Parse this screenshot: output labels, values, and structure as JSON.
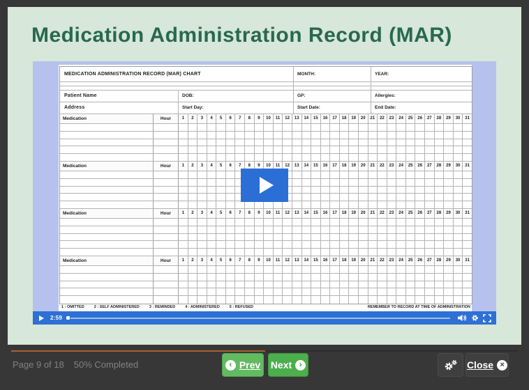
{
  "page": {
    "title": "Medication Administration Record (MAR)"
  },
  "colors": {
    "title_green": "#28694c",
    "card_mint": "#d7e7da",
    "video_periwinkle": "#b6c1ee",
    "player_blue": "#2e70d4",
    "play_button_blue": "#2b6fd6",
    "button_green": "#4cae4c",
    "button_green_light": "#63ba63",
    "progress_orange": "#a96230",
    "frame_dark": "#373737"
  },
  "video": {
    "time": "2:59",
    "chart": {
      "header": {
        "title": "MEDICATION ADMINISTRATION RECORD (MAR) CHART",
        "month_label": "MONTH:",
        "year_label": "YEAR:"
      },
      "info_rows": [
        [
          "Patient Name",
          "DOB:",
          "GP:",
          "Allergies:"
        ],
        [
          "Address",
          "Start Day:",
          "Start Date:",
          "End Date:"
        ]
      ],
      "medication_label": "Medication",
      "hour_label": "Hour",
      "days": [
        1,
        2,
        3,
        4,
        5,
        6,
        7,
        8,
        9,
        10,
        11,
        12,
        13,
        14,
        15,
        16,
        17,
        18,
        19,
        20,
        21,
        22,
        23,
        24,
        25,
        26,
        27,
        28,
        29,
        30,
        31
      ],
      "block_count": 4,
      "body_rows_per_block": 5,
      "legend": [
        "1 : OMITTED",
        "2 : SELF ADMINISTERED",
        "3 : REMINDED",
        "4 : ADMINISTERED",
        "5 : REFUSED"
      ],
      "legend_note": "REMEMBER TO RECORD AT TIME OF ADMINISTRATION"
    }
  },
  "footer": {
    "page_info": "Page 9 of 18",
    "completion": "50% Completed",
    "prev_label": "Prev",
    "next_label": "Next",
    "close_label": "Close"
  }
}
